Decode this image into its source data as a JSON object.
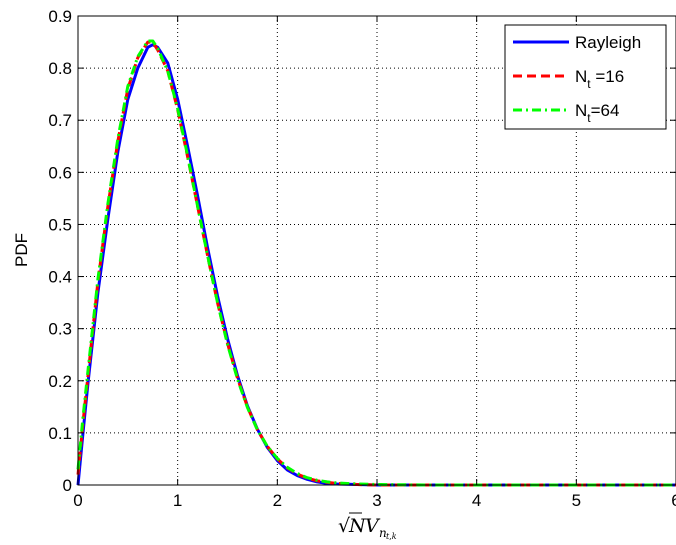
{
  "chart_data": {
    "type": "line",
    "title": "",
    "ylabel": "PDF",
    "xlabel_parts": {
      "radical": "√",
      "n": "N",
      "v": "V",
      "sub": "n",
      "subsub": "t,k"
    },
    "xlim": [
      0,
      6
    ],
    "ylim": [
      0,
      0.9
    ],
    "xticks": [
      "0",
      "1",
      "2",
      "3",
      "4",
      "5",
      "6"
    ],
    "yticks": [
      "0",
      "0.1",
      "0.2",
      "0.3",
      "0.4",
      "0.5",
      "0.6",
      "0.7",
      "0.8",
      "0.9"
    ],
    "grid": true,
    "legend_position": "top-right",
    "series": [
      {
        "name": "Rayleigh",
        "color": "#0000ff",
        "style": "solid",
        "x": [
          0,
          0.05,
          0.1,
          0.2,
          0.3,
          0.4,
          0.5,
          0.6,
          0.7,
          0.75,
          0.8,
          0.9,
          1.0,
          1.1,
          1.2,
          1.3,
          1.4,
          1.5,
          1.6,
          1.7,
          1.8,
          1.9,
          2.0,
          2.1,
          2.2,
          2.3,
          2.4,
          2.5,
          2.6,
          2.8,
          3.0,
          3.5,
          4.0,
          5.0,
          6.0
        ],
        "y": [
          0,
          0.1,
          0.196,
          0.369,
          0.511,
          0.64,
          0.74,
          0.8,
          0.84,
          0.845,
          0.84,
          0.81,
          0.74,
          0.65,
          0.555,
          0.455,
          0.363,
          0.281,
          0.21,
          0.152,
          0.107,
          0.072,
          0.047,
          0.029,
          0.018,
          0.011,
          0.006,
          0.003,
          0.002,
          0.001,
          0,
          0,
          0,
          0,
          0
        ]
      },
      {
        "name": "N_t =16",
        "color": "#ff0000",
        "style": "dashed",
        "x": [
          0,
          0.05,
          0.1,
          0.2,
          0.3,
          0.4,
          0.5,
          0.6,
          0.7,
          0.75,
          0.8,
          0.9,
          1.0,
          1.1,
          1.2,
          1.3,
          1.4,
          1.5,
          1.6,
          1.7,
          1.8,
          1.9,
          2.0,
          2.1,
          2.2,
          2.3,
          2.4,
          2.5,
          2.6,
          2.8,
          3.0,
          3.5,
          4.0,
          5.0,
          6.0
        ],
        "y": [
          0.02,
          0.12,
          0.21,
          0.39,
          0.535,
          0.66,
          0.76,
          0.82,
          0.85,
          0.85,
          0.835,
          0.795,
          0.72,
          0.63,
          0.535,
          0.44,
          0.35,
          0.272,
          0.205,
          0.15,
          0.106,
          0.074,
          0.05,
          0.033,
          0.021,
          0.013,
          0.008,
          0.005,
          0.003,
          0.001,
          0,
          0,
          0,
          0,
          0
        ]
      },
      {
        "name": "N_t=64",
        "color": "#00ff00",
        "style": "dashdot",
        "x": [
          0,
          0.05,
          0.1,
          0.2,
          0.3,
          0.4,
          0.5,
          0.6,
          0.7,
          0.75,
          0.8,
          0.9,
          1.0,
          1.1,
          1.2,
          1.3,
          1.4,
          1.5,
          1.6,
          1.7,
          1.8,
          1.9,
          2.0,
          2.1,
          2.2,
          2.3,
          2.4,
          2.5,
          2.6,
          2.8,
          3.0,
          3.5,
          4.0,
          5.0,
          6.0
        ],
        "y": [
          0.03,
          0.13,
          0.22,
          0.395,
          0.54,
          0.665,
          0.765,
          0.822,
          0.852,
          0.852,
          0.838,
          0.795,
          0.722,
          0.632,
          0.535,
          0.44,
          0.35,
          0.27,
          0.203,
          0.149,
          0.106,
          0.074,
          0.051,
          0.034,
          0.022,
          0.014,
          0.009,
          0.006,
          0.004,
          0.002,
          0.001,
          0,
          0,
          0,
          0
        ]
      }
    ]
  }
}
